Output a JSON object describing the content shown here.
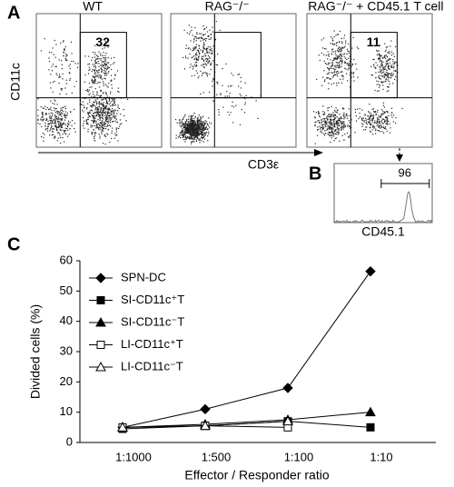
{
  "panel_a": {
    "letter": "A",
    "plots": [
      {
        "title": "WT",
        "gate_value": "32"
      },
      {
        "title": "RAG⁻/⁻"
      },
      {
        "title": "RAG⁻/⁻ + CD45.1 T cell",
        "gate_value": "11"
      }
    ],
    "y_label": "CD11c",
    "x_label": "CD3ε"
  },
  "panel_b": {
    "letter": "B",
    "gate_value": "96",
    "x_label": "CD45.1"
  },
  "chart_data": {
    "type": "line",
    "letter": "C",
    "ylabel": "Divided cells (%)",
    "xlabel": "Effector / Responder ratio",
    "categories": [
      "1:1000",
      "1:500",
      "1:100",
      "1:10"
    ],
    "ylim": [
      0,
      60
    ],
    "yticks": [
      0,
      10,
      20,
      30,
      40,
      50,
      60
    ],
    "series": [
      {
        "name": "SPN-DC",
        "color": "#000000",
        "marker": "diamond",
        "values": [
          5,
          11,
          18,
          56.5
        ]
      },
      {
        "name": "SI-CD11c⁺T",
        "color": "#000000",
        "marker": "square",
        "values": [
          4.5,
          5.5,
          7,
          5
        ]
      },
      {
        "name": "SI-CD11c⁻T",
        "color": "#000000",
        "marker": "triangle",
        "values": [
          5,
          6,
          7.5,
          10
        ]
      },
      {
        "name": "LI-CD11c⁺T",
        "color": "#000000",
        "marker": "square-open",
        "values": [
          5,
          5.5,
          5,
          null
        ]
      },
      {
        "name": "LI-CD11c⁻T",
        "color": "#000000",
        "marker": "triangle-open",
        "values": [
          5,
          5.5,
          7,
          null
        ]
      }
    ],
    "legend": "upper-left"
  }
}
